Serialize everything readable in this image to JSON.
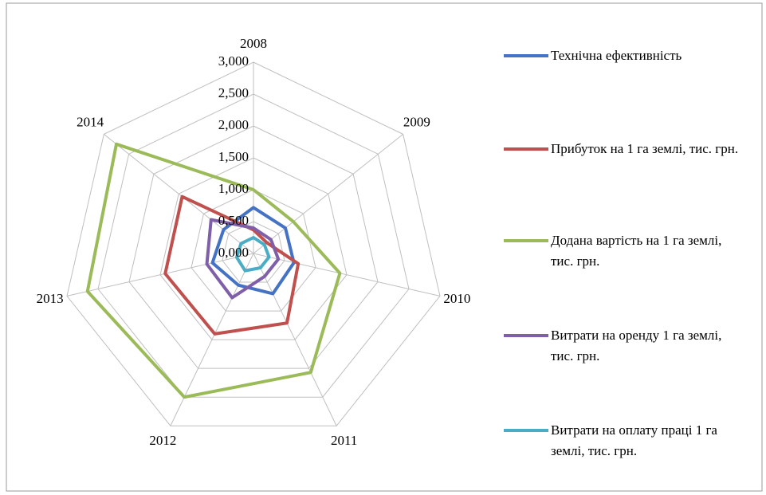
{
  "chart_data": {
    "type": "radar",
    "categories": [
      "2008",
      "2009",
      "2010",
      "2011",
      "2012",
      "2013",
      "2014"
    ],
    "series": [
      {
        "name": "Технічна ефективність",
        "color": "#4472c4",
        "values": [
          0.72,
          0.64,
          0.65,
          0.7,
          0.55,
          0.66,
          0.6
        ]
      },
      {
        "name": "Прибуток на 1 га землі, тис. грн.",
        "color": "#c0504d",
        "values": [
          0.37,
          0.27,
          0.72,
          1.21,
          1.4,
          1.42,
          1.43
        ]
      },
      {
        "name": "Додана вартість на 1 га землі, тис. грн.",
        "color": "#9bbb59",
        "values": [
          1.0,
          0.8,
          1.39,
          2.07,
          2.5,
          2.67,
          2.75
        ]
      },
      {
        "name": "Витрати на оренду 1 га землі, тис. грн.",
        "color": "#7f5fa8",
        "values": [
          0.4,
          0.35,
          0.4,
          0.4,
          0.77,
          0.75,
          0.85
        ]
      },
      {
        "name": "Витрати на оплату праці 1 га землі, тис. грн.",
        "color": "#4bacc6",
        "values": [
          0.25,
          0.22,
          0.25,
          0.25,
          0.3,
          0.27,
          0.25
        ]
      }
    ],
    "ylim": [
      0,
      3
    ],
    "yticks": [
      {
        "value": 0,
        "label": "0,000"
      },
      {
        "value": 0.5,
        "label": "0,500"
      },
      {
        "value": 1,
        "label": "1,000"
      },
      {
        "value": 1.5,
        "label": "1,500"
      },
      {
        "value": 2,
        "label": "2,000"
      },
      {
        "value": 2.5,
        "label": "2,500"
      },
      {
        "value": 3,
        "label": "3,000"
      }
    ],
    "grid": true,
    "legend": "right"
  }
}
